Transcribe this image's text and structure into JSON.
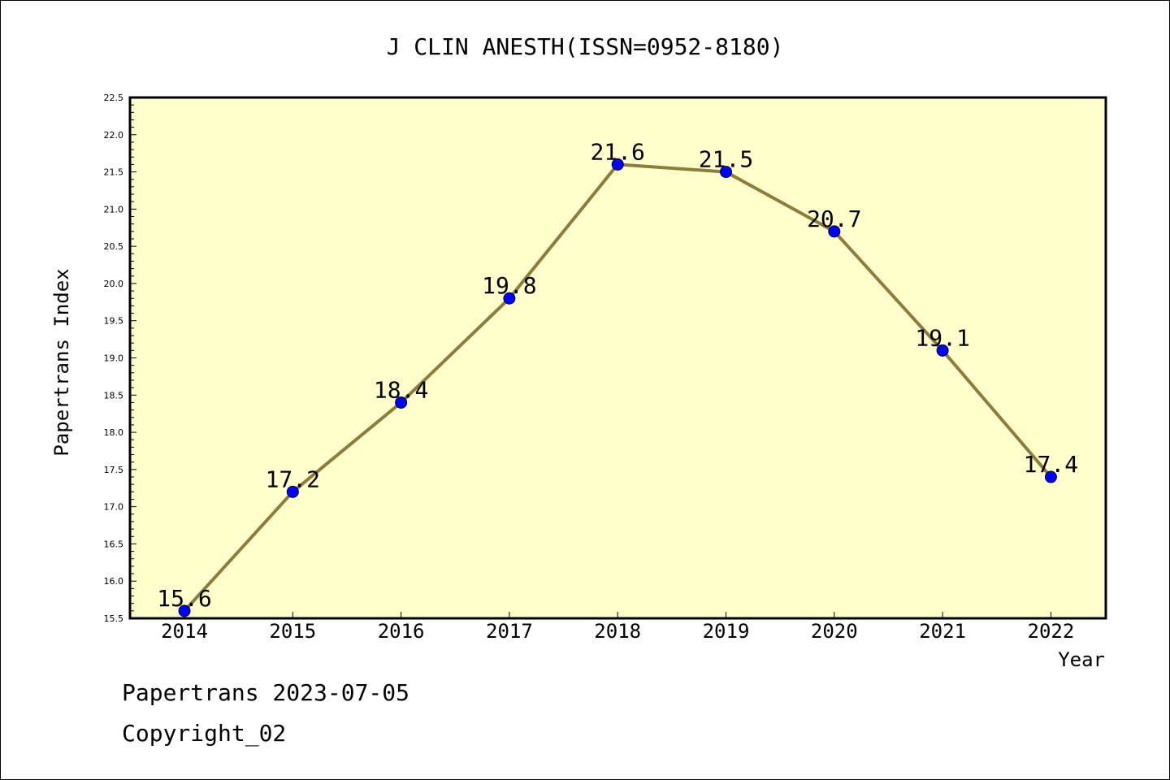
{
  "chart_data": {
    "type": "line",
    "title": "J CLIN ANESTH(ISSN=0952-8180)",
    "xlabel": "Year",
    "ylabel": "Papertrans Index",
    "categories": [
      "2014",
      "2015",
      "2016",
      "2017",
      "2018",
      "2019",
      "2020",
      "2021",
      "2022"
    ],
    "series": [
      {
        "values": [
          15.6,
          17.2,
          18.4,
          19.8,
          21.6,
          21.5,
          20.7,
          19.1,
          17.4
        ],
        "data_labels": [
          "15.6",
          "17.2",
          "18.4",
          "19.8",
          "21.6",
          "21.5",
          "20.7",
          "19.1",
          "17.4"
        ]
      }
    ],
    "ylim": [
      15.5,
      22.5
    ],
    "yticks": [
      "15.5",
      "16.0",
      "16.5",
      "17.0",
      "17.5",
      "18.0",
      "18.5",
      "19.0",
      "19.5",
      "20.0",
      "20.5",
      "21.0",
      "21.5",
      "22.0",
      "22.5"
    ],
    "grid": false,
    "legend": "none",
    "colors": {
      "plot_background": "#ffffcc",
      "line": "#8b7d3a",
      "marker": "#0000ff"
    }
  },
  "footer": {
    "date_text": "Papertrans 2023-07-05",
    "copyright_text": "Copyright_02"
  }
}
